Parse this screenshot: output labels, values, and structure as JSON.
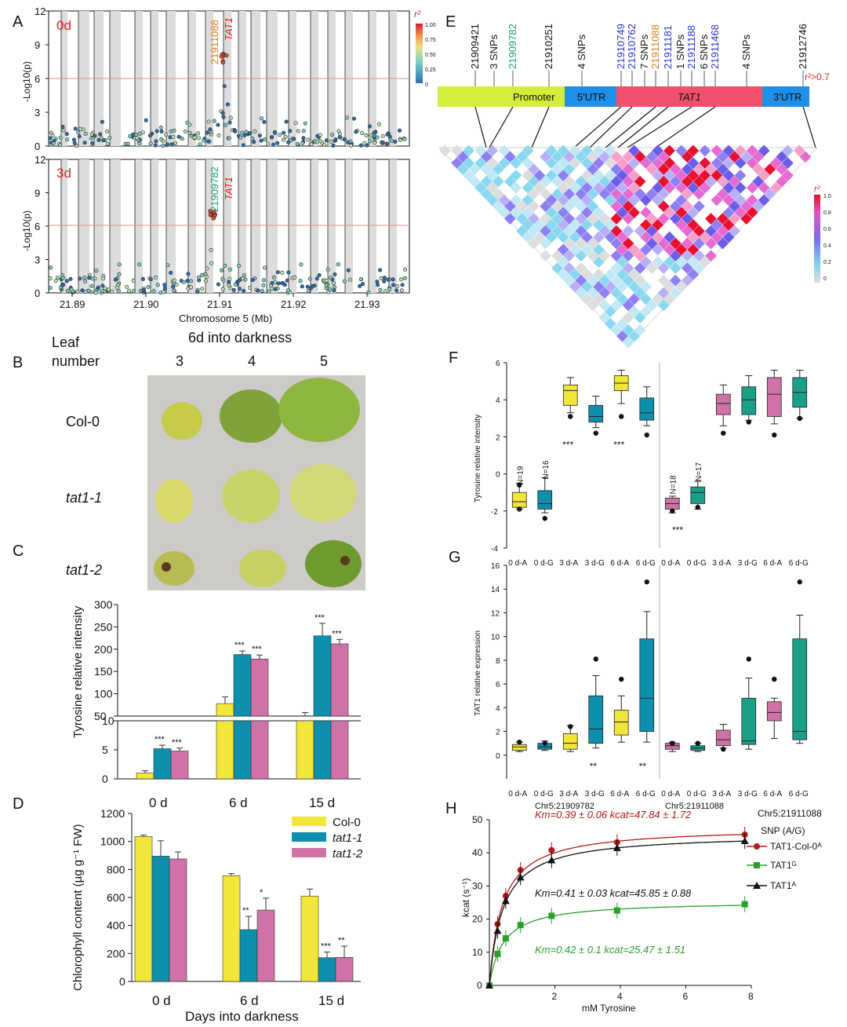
{
  "panel_labels": {
    "A": "A",
    "B": "B",
    "C": "C",
    "D": "D",
    "E": "E",
    "F": "F",
    "G": "G",
    "H": "H"
  },
  "panelA": {
    "top_label": "0d",
    "bottom_label": "3d",
    "ylabel": "-Log10(p)",
    "xlabel": "Chromosome 5 (Mb)",
    "yticks": [
      "0",
      "3",
      "6",
      "9",
      "12"
    ],
    "xticks": [
      "21.89",
      "21.90",
      "21.91",
      "21.92",
      "21.93"
    ],
    "snp_top": "21911088",
    "snp_bottom": "21909782",
    "gene": "TAT1",
    "legend_title": "r²",
    "legend_ticks": [
      "1.00",
      "0.75",
      "0.50",
      "0.25",
      "0"
    ]
  },
  "panelB": {
    "title": "6d into darkness",
    "leaf_label_1": "Leaf",
    "leaf_label_2": "number",
    "columns": [
      "3",
      "4",
      "5"
    ],
    "rows": [
      "Col-0",
      "tat1-1",
      "tat1-2"
    ]
  },
  "panelC": {
    "ylabel": "Tyrosine relative intensity",
    "yticks_top": [
      "50",
      "100",
      "150",
      "200",
      "250",
      "300"
    ],
    "yticks_bottom": [
      "0",
      "5",
      "10"
    ]
  },
  "panelD": {
    "ylabel": "Chlorophyll content (µg g⁻¹ FW)",
    "xlabel": "Days into darkness",
    "yticks": [
      "0",
      "200",
      "400",
      "600",
      "800",
      "1000",
      "1200"
    ],
    "legend": [
      "Col-0",
      "tat1-1",
      "tat1-2"
    ]
  },
  "barcharts": {
    "categories": [
      "0 d",
      "6 d",
      "15 d"
    ],
    "colors": {
      "col0": "#f2e63a",
      "tat11": "#0e8fae",
      "tat12": "#cf72a6"
    }
  },
  "chart_data": [
    {
      "type": "bar",
      "title": "",
      "ylabel": "Tyrosine relative intensity",
      "categories": [
        "0 d",
        "6 d",
        "15 d"
      ],
      "series": [
        {
          "name": "Col-0",
          "values": [
            1,
            78,
            50
          ],
          "err": [
            0.4,
            15,
            8
          ]
        },
        {
          "name": "tat1-1",
          "values": [
            5.2,
            188,
            230
          ],
          "err": [
            0.6,
            8,
            28
          ]
        },
        {
          "name": "tat1-2",
          "values": [
            4.8,
            178,
            212
          ],
          "err": [
            0.5,
            9,
            10
          ]
        }
      ],
      "annotations": [
        {
          "category": "0 d",
          "series": "tat1-1",
          "text": "***"
        },
        {
          "category": "0 d",
          "series": "tat1-2",
          "text": "***"
        },
        {
          "category": "6 d",
          "series": "tat1-1",
          "text": "***"
        },
        {
          "category": "6 d",
          "series": "tat1-2",
          "text": "***"
        },
        {
          "category": "15 d",
          "series": "tat1-1",
          "text": "***"
        },
        {
          "category": "15 d",
          "series": "tat1-2",
          "text": "***"
        }
      ],
      "axis_break": [
        10,
        50
      ]
    },
    {
      "type": "bar",
      "title": "",
      "xlabel": "Days into darkness",
      "ylabel": "Chlorophyll content (µg g⁻¹ FW)",
      "ylim": [
        0,
        1200
      ],
      "categories": [
        "0 d",
        "6 d",
        "15 d"
      ],
      "series": [
        {
          "name": "Col-0",
          "values": [
            1035,
            755,
            610
          ],
          "err": [
            10,
            15,
            50
          ]
        },
        {
          "name": "tat1-1",
          "values": [
            895,
            370,
            170
          ],
          "err": [
            110,
            95,
            40
          ]
        },
        {
          "name": "tat1-2",
          "values": [
            875,
            510,
            172
          ],
          "err": [
            50,
            85,
            80
          ]
        }
      ],
      "annotations": [
        {
          "category": "6 d",
          "series": "tat1-1",
          "text": "**"
        },
        {
          "category": "6 d",
          "series": "tat1-2",
          "text": "*"
        },
        {
          "category": "15 d",
          "series": "tat1-1",
          "text": "***"
        },
        {
          "category": "15 d",
          "series": "tat1-2",
          "text": "**"
        }
      ],
      "legend": "top-right"
    },
    {
      "type": "box",
      "title": "",
      "ylabel": "Tyrosine relative intensity",
      "ylim": [
        -4,
        6
      ],
      "categories": [
        "0 d-A",
        "0 d-G",
        "3 d-A",
        "3 d-G",
        "6 d-A",
        "6 d-G",
        "0 d-A",
        "0 d-G",
        "3 d-A",
        "3 d-G",
        "6 d-A",
        "6 d-G"
      ],
      "boxes": [
        {
          "q1": -1.8,
          "med": -1.5,
          "q3": -1.0,
          "lo": -1.9,
          "hi": -0.5,
          "out": [
            -1.9,
            -0.6
          ]
        },
        {
          "q1": -1.9,
          "med": -1.6,
          "q3": -0.9,
          "lo": -2.1,
          "hi": -0.2,
          "out": [
            -2.4
          ]
        },
        {
          "q1": 3.7,
          "med": 4.5,
          "q3": 4.8,
          "lo": 3.3,
          "hi": 5.2,
          "out": [
            3.1
          ]
        },
        {
          "q1": 2.8,
          "med": 3.1,
          "q3": 3.7,
          "lo": 2.5,
          "hi": 4.2,
          "out": [
            2.2
          ]
        },
        {
          "q1": 4.5,
          "med": 4.9,
          "q3": 5.3,
          "lo": 3.8,
          "hi": 5.6,
          "out": [
            3.1
          ]
        },
        {
          "q1": 2.9,
          "med": 3.3,
          "q3": 4.1,
          "lo": 2.6,
          "hi": 4.7,
          "out": [
            2.1
          ]
        },
        {
          "q1": -1.9,
          "med": -1.6,
          "q3": -1.3,
          "lo": -2.1,
          "hi": -1.2,
          "out": [
            -2.0
          ]
        },
        {
          "q1": -1.6,
          "med": -1.0,
          "q3": -0.7,
          "lo": -1.9,
          "hi": -0.4,
          "out": [
            -1.8
          ]
        },
        {
          "q1": 3.2,
          "med": 3.8,
          "q3": 4.3,
          "lo": 2.6,
          "hi": 4.8,
          "out": [
            2.2
          ]
        },
        {
          "q1": 3.2,
          "med": 4.0,
          "q3": 4.7,
          "lo": 2.9,
          "hi": 5.3,
          "out": [
            2.8
          ]
        },
        {
          "q1": 3.1,
          "med": 4.3,
          "q3": 5.2,
          "lo": 2.7,
          "hi": 5.6,
          "out": [
            2.1
          ]
        },
        {
          "q1": 3.6,
          "med": 4.4,
          "q3": 5.2,
          "lo": 3.0,
          "hi": 5.6,
          "out": [
            3.0
          ]
        }
      ],
      "texts": [
        "N=19",
        "N=16",
        "N=18",
        "N=17",
        "***",
        "***",
        "***"
      ]
    },
    {
      "type": "box",
      "title": "",
      "ylabel": "TAT1 relative expression",
      "ylim": [
        -2,
        16
      ],
      "groups": [
        "Chr5:21909782",
        "Chr5:21911088"
      ],
      "categories": [
        "0 d-A",
        "0 d-G",
        "3 d-A",
        "3 d-G",
        "6 d-A",
        "6 d-G",
        "0 d-A",
        "0 d-G",
        "3 d-A",
        "3 d-G",
        "6 d-A",
        "6 d-G"
      ],
      "boxes": [
        {
          "q1": 0.4,
          "med": 0.7,
          "q3": 0.9,
          "lo": 0.3,
          "hi": 1.1,
          "out": [
            1.1
          ]
        },
        {
          "q1": 0.5,
          "med": 0.7,
          "q3": 1.0,
          "lo": 0.4,
          "hi": 1.2,
          "out": [
            1.0
          ]
        },
        {
          "q1": 0.5,
          "med": 1.0,
          "q3": 1.8,
          "lo": 0.3,
          "hi": 2.5,
          "out": [
            2.4
          ]
        },
        {
          "q1": 1.0,
          "med": 2.2,
          "q3": 5.0,
          "lo": 0.6,
          "hi": 6.7,
          "out": [
            8.1
          ]
        },
        {
          "q1": 1.7,
          "med": 2.8,
          "q3": 3.8,
          "lo": 1.1,
          "hi": 5.0,
          "out": [
            6.4
          ]
        },
        {
          "q1": 2.0,
          "med": 4.8,
          "q3": 9.8,
          "lo": 1.1,
          "hi": 12.1,
          "out": [
            14.6
          ]
        },
        {
          "q1": 0.5,
          "med": 0.8,
          "q3": 1.0,
          "lo": 0.3,
          "hi": 1.1,
          "out": [
            1.0
          ]
        },
        {
          "q1": 0.4,
          "med": 0.6,
          "q3": 0.8,
          "lo": 0.3,
          "hi": 1.0,
          "out": [
            1.0
          ]
        },
        {
          "q1": 0.8,
          "med": 1.3,
          "q3": 2.1,
          "lo": 0.6,
          "hi": 2.6,
          "out": [
            0.5
          ]
        },
        {
          "q1": 0.9,
          "med": 1.2,
          "q3": 4.8,
          "lo": 0.5,
          "hi": 6.5,
          "out": [
            8.1
          ]
        },
        {
          "q1": 2.9,
          "med": 3.6,
          "q3": 4.5,
          "lo": 1.4,
          "hi": 4.8,
          "out": [
            6.4
          ]
        },
        {
          "q1": 1.3,
          "med": 2.0,
          "q3": 9.8,
          "lo": 1.0,
          "hi": 11.8,
          "out": [
            14.6
          ]
        }
      ],
      "texts": [
        "**",
        "**"
      ]
    },
    {
      "type": "line",
      "title": "",
      "xlabel": "mM Tyrosine",
      "ylabel": "kcat (s⁻¹)",
      "xlim": [
        0,
        8
      ],
      "ylim": [
        0,
        50
      ],
      "series": [
        {
          "name": "TAT1-Col-0ᴬ",
          "x": [
            0,
            0.25,
            0.5,
            0.95,
            1.9,
            3.9,
            7.8
          ],
          "y": [
            0,
            18.5,
            27,
            34.8,
            40.8,
            43.2,
            45.5
          ],
          "km": 0.39,
          "kcat": 47.84
        },
        {
          "name": "TAT1ᴳ",
          "x": [
            0,
            0.25,
            0.5,
            0.95,
            1.9,
            3.9,
            7.8
          ],
          "y": [
            0,
            9.5,
            14.2,
            18.2,
            21,
            22.6,
            24.5
          ],
          "km": 0.42,
          "kcat": 25.47
        },
        {
          "name": "TAT1ᴬ",
          "x": [
            0,
            0.25,
            0.5,
            0.95,
            1.9,
            3.9,
            7.8
          ],
          "y": [
            0,
            16.5,
            25.5,
            32.6,
            37.8,
            41.5,
            43.6
          ],
          "km": 0.41,
          "kcat": 45.85
        }
      ],
      "legend_title": "SNP (A/G)",
      "snp_label": "Chr5:21911088"
    }
  ],
  "panelE": {
    "snps_black": [
      "21909421",
      "21910251",
      "21912746"
    ],
    "snp_green": "21909782",
    "snps_blue": [
      "21910749",
      "21910762",
      "21911181",
      "21911188",
      "21911468"
    ],
    "snp_orange": "21911088",
    "counts": [
      "3 SNPs",
      "4 SNPs",
      "7 SNPs",
      "1 SNPs",
      "6 SNPs",
      "4 SNPs"
    ],
    "r2_note": "r²>0.7",
    "regions": [
      "Promoter",
      "5'UTR",
      "TAT1",
      "3'UTR"
    ],
    "legend_title": "r²",
    "legend_ticks": [
      "1.0",
      "0.8",
      "0.6",
      "0.4",
      "0.2",
      "0"
    ]
  },
  "panelF": {
    "ylabel": "Tyrosine relative intensity",
    "yticks": [
      "-4",
      "-2",
      "0",
      "2",
      "4",
      "6"
    ]
  },
  "panelG": {
    "ylabel": "TAT1 relative expression",
    "yticks": [
      "0",
      "2",
      "4",
      "6",
      "8",
      "10",
      "12",
      "14",
      "16"
    ],
    "groups": [
      "Chr5:21909782",
      "Chr5:21911088"
    ]
  },
  "panelH": {
    "snp": "Chr5:21911088",
    "legend_title": "SNP (A/G)",
    "xlabel": "mM Tyrosine",
    "ylabel": "kcat (s⁻¹)",
    "fit_red": "Km=0.39 ± 0.06 kcat=47.84 ± 1.72",
    "fit_black": "Km=0.41 ± 0.03 kcat=45.85 ± 0.88",
    "fit_green": "Km=0.42 ± 0.1  kcat=25.47 ± 1.51",
    "legend": [
      "TAT1-Col-0ᴬ",
      "TAT1ᴳ",
      "TAT1ᴬ"
    ],
    "xticks": [
      "0",
      "2",
      "4",
      "6",
      "8"
    ],
    "yticks": [
      "0",
      "10",
      "20",
      "30",
      "40",
      "50"
    ]
  }
}
